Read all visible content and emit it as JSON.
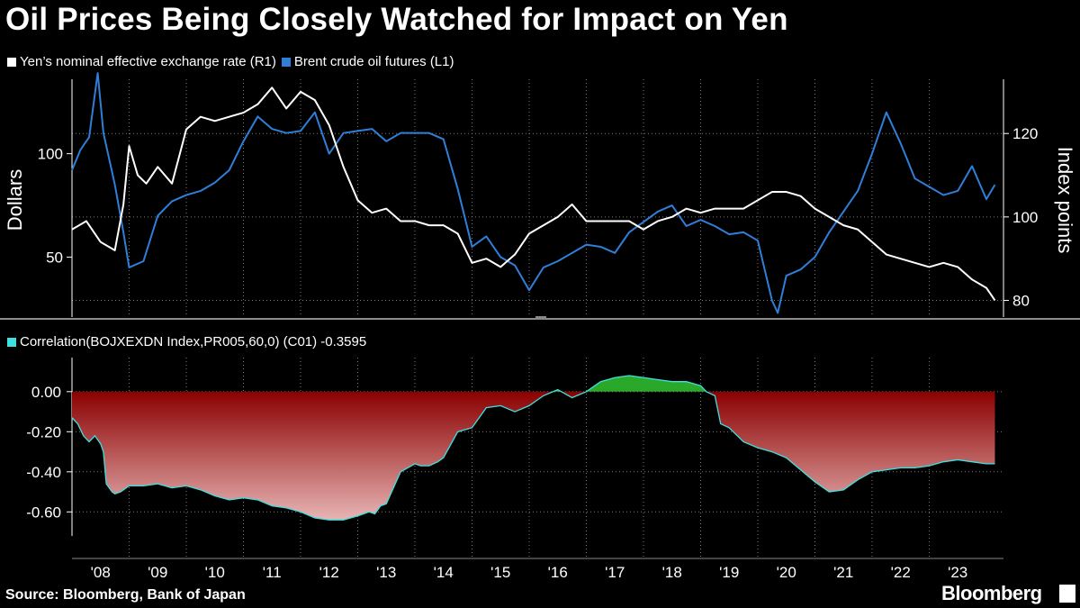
{
  "title": "Oil Prices Being Closely Watched for Impact on Yen",
  "source": "Source: Bloomberg, Bank of Japan",
  "brand": "Bloomberg",
  "colors": {
    "background": "#000000",
    "yen": "#ffffff",
    "oil": "#2f7fd8",
    "correlation_line": "#3fe0e0",
    "negative_fill_top": "#8b0000",
    "negative_fill_bottom": "#e8b4b4",
    "positive_fill": "#2aa82a",
    "grid": "#7a7a7a"
  },
  "chart_data": [
    {
      "type": "line",
      "title": "Oil Prices Being Closely Watched for Impact on Yen",
      "x_labels": [
        "'08",
        "'09",
        "'10",
        "'11",
        "'12",
        "'13",
        "'14",
        "'15",
        "'16",
        "'17",
        "'18",
        "'19",
        "'20",
        "'21",
        "'22",
        "'23"
      ],
      "x_range": [
        2008.0,
        2024.3
      ],
      "ylabel_left": "Dollars",
      "ylabel_right": "Index points",
      "ylim_left": [
        21,
        136
      ],
      "ylim_right": [
        76,
        133
      ],
      "yticks_left": [
        50,
        100
      ],
      "yticks_right": [
        80,
        100,
        120
      ],
      "grid": true,
      "series": [
        {
          "name": "Yen’s nominal effective exchange rate (R1)",
          "axis": "right",
          "color": "#ffffff",
          "x": [
            2008.0,
            2008.25,
            2008.5,
            2008.75,
            2008.9,
            2009.0,
            2009.15,
            2009.3,
            2009.5,
            2009.75,
            2010.0,
            2010.25,
            2010.5,
            2010.75,
            2011.0,
            2011.25,
            2011.5,
            2011.75,
            2012.0,
            2012.25,
            2012.5,
            2012.75,
            2013.0,
            2013.25,
            2013.5,
            2013.75,
            2014.0,
            2014.25,
            2014.5,
            2014.75,
            2015.0,
            2015.25,
            2015.5,
            2015.75,
            2016.0,
            2016.25,
            2016.5,
            2016.75,
            2017.0,
            2017.25,
            2017.5,
            2017.75,
            2018.0,
            2018.25,
            2018.5,
            2018.75,
            2019.0,
            2019.25,
            2019.5,
            2019.75,
            2020.0,
            2020.25,
            2020.5,
            2020.75,
            2021.0,
            2021.25,
            2021.5,
            2021.75,
            2022.0,
            2022.25,
            2022.5,
            2022.75,
            2023.0,
            2023.25,
            2023.5,
            2023.75,
            2024.0,
            2024.15
          ],
          "y": [
            97,
            99,
            94,
            92,
            103,
            117,
            110,
            108,
            112,
            108,
            121,
            124,
            123,
            124,
            125,
            127,
            131,
            126,
            130,
            128,
            122,
            112,
            104,
            101,
            102,
            99,
            99,
            98,
            98,
            96,
            89,
            90,
            88,
            91,
            96,
            98,
            100,
            103,
            99,
            99,
            99,
            99,
            97,
            99,
            100,
            102,
            101,
            102,
            102,
            102,
            104,
            106,
            106,
            105,
            102,
            100,
            98,
            97,
            94,
            91,
            90,
            89,
            88,
            89,
            88,
            85,
            83,
            80
          ]
        },
        {
          "name": "Brent crude oil futures (L1)",
          "axis": "left",
          "color": "#2f7fd8",
          "x": [
            2008.0,
            2008.15,
            2008.3,
            2008.45,
            2008.55,
            2008.75,
            2008.9,
            2009.0,
            2009.25,
            2009.5,
            2009.75,
            2010.0,
            2010.25,
            2010.5,
            2010.75,
            2011.0,
            2011.25,
            2011.5,
            2011.75,
            2012.0,
            2012.25,
            2012.5,
            2012.75,
            2013.0,
            2013.25,
            2013.5,
            2013.75,
            2014.0,
            2014.25,
            2014.5,
            2014.75,
            2015.0,
            2015.25,
            2015.5,
            2015.75,
            2016.0,
            2016.25,
            2016.5,
            2016.75,
            2017.0,
            2017.25,
            2017.5,
            2017.75,
            2018.0,
            2018.25,
            2018.5,
            2018.75,
            2019.0,
            2019.25,
            2019.5,
            2019.75,
            2020.0,
            2020.25,
            2020.35,
            2020.5,
            2020.75,
            2021.0,
            2021.25,
            2021.5,
            2021.75,
            2022.0,
            2022.25,
            2022.5,
            2022.75,
            2023.0,
            2023.25,
            2023.5,
            2023.75,
            2024.0,
            2024.15
          ],
          "y": [
            92,
            102,
            108,
            139,
            110,
            85,
            62,
            45,
            48,
            70,
            77,
            80,
            82,
            86,
            92,
            106,
            118,
            112,
            110,
            111,
            120,
            100,
            110,
            111,
            112,
            106,
            110,
            110,
            110,
            107,
            83,
            55,
            60,
            50,
            46,
            34,
            45,
            48,
            52,
            56,
            55,
            52,
            62,
            67,
            72,
            75,
            65,
            68,
            65,
            61,
            62,
            58,
            29,
            23,
            41,
            44,
            50,
            62,
            72,
            82,
            100,
            120,
            105,
            88,
            84,
            80,
            82,
            94,
            78,
            85
          ]
        }
      ]
    },
    {
      "type": "area",
      "title": "Correlation(BOJXEXDN Index,PR005,60,0) (C01) -0.3595",
      "legend": "Correlation(BOJXEXDN Index,PR005,60,0) (C01) -0.3595",
      "last_value": -0.3595,
      "x_range": [
        2008.0,
        2024.3
      ],
      "ylim": [
        -0.72,
        0.17
      ],
      "yticks": [
        0.0,
        -0.2,
        -0.4,
        -0.6
      ],
      "ytick_labels": [
        "0.00",
        "-0.20",
        "-0.40",
        "-0.60"
      ],
      "grid": true,
      "series": [
        {
          "name": "Correlation(BOJXEXDN Index,PR005,60,0) (C01)",
          "color": "#3fe0e0",
          "x": [
            2008.0,
            2008.1,
            2008.2,
            2008.3,
            2008.4,
            2008.5,
            2008.55,
            2008.6,
            2008.7,
            2008.75,
            2008.85,
            2009.0,
            2009.25,
            2009.5,
            2009.75,
            2010.0,
            2010.25,
            2010.5,
            2010.75,
            2011.0,
            2011.25,
            2011.5,
            2011.75,
            2012.0,
            2012.25,
            2012.5,
            2012.75,
            2013.0,
            2013.1,
            2013.2,
            2013.3,
            2013.4,
            2013.5,
            2013.75,
            2014.0,
            2014.1,
            2014.25,
            2014.4,
            2014.5,
            2014.75,
            2015.0,
            2015.25,
            2015.5,
            2015.75,
            2016.0,
            2016.25,
            2016.5,
            2016.75,
            2017.0,
            2017.25,
            2017.5,
            2017.75,
            2018.0,
            2018.25,
            2018.5,
            2018.75,
            2019.0,
            2019.1,
            2019.25,
            2019.35,
            2019.5,
            2019.75,
            2020.0,
            2020.25,
            2020.5,
            2020.75,
            2021.0,
            2021.25,
            2021.5,
            2021.75,
            2022.0,
            2022.25,
            2022.5,
            2022.75,
            2023.0,
            2023.25,
            2023.5,
            2023.75,
            2024.0,
            2024.15
          ],
          "y": [
            -0.13,
            -0.16,
            -0.22,
            -0.25,
            -0.22,
            -0.26,
            -0.3,
            -0.46,
            -0.5,
            -0.51,
            -0.5,
            -0.47,
            -0.47,
            -0.46,
            -0.48,
            -0.47,
            -0.49,
            -0.52,
            -0.54,
            -0.53,
            -0.54,
            -0.57,
            -0.58,
            -0.6,
            -0.63,
            -0.64,
            -0.64,
            -0.62,
            -0.61,
            -0.6,
            -0.61,
            -0.57,
            -0.56,
            -0.4,
            -0.36,
            -0.37,
            -0.37,
            -0.35,
            -0.33,
            -0.2,
            -0.18,
            -0.08,
            -0.07,
            -0.1,
            -0.07,
            -0.02,
            0.01,
            -0.03,
            0.0,
            0.05,
            0.07,
            0.08,
            0.07,
            0.06,
            0.05,
            0.05,
            0.03,
            0.0,
            -0.02,
            -0.16,
            -0.18,
            -0.25,
            -0.28,
            -0.3,
            -0.33,
            -0.39,
            -0.45,
            -0.5,
            -0.49,
            -0.44,
            -0.4,
            -0.39,
            -0.38,
            -0.38,
            -0.37,
            -0.35,
            -0.34,
            -0.35,
            -0.36,
            -0.36
          ]
        }
      ]
    }
  ]
}
